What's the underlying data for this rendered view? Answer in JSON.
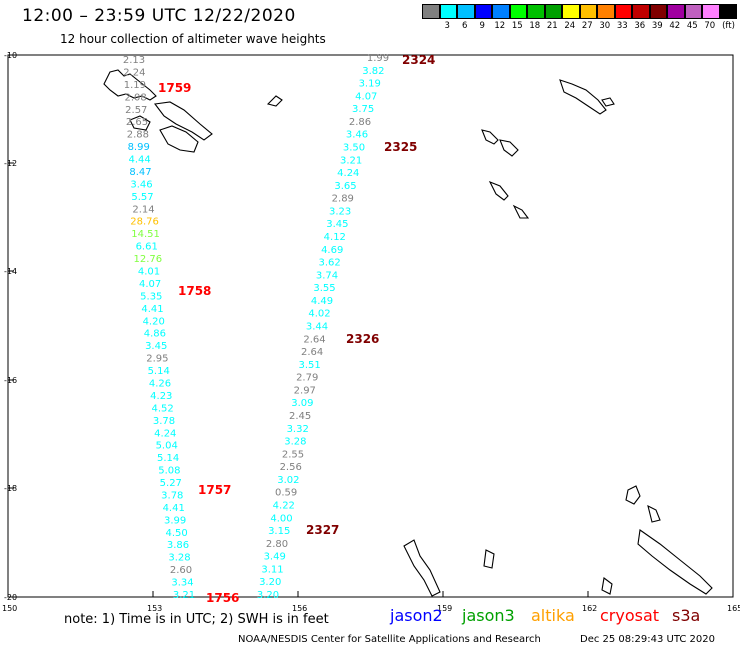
{
  "title": "12:00 – 23:59 UTC 12/22/2020",
  "subtitle": "12 hour collection of altimeter wave heights",
  "scale": {
    "unit": "(ft)",
    "colors": [
      "#808080",
      "#00ffff",
      "#00c0ff",
      "#0000ff",
      "#0080ff",
      "#00ff00",
      "#00c000",
      "#00a000",
      "#ffff00",
      "#ffc000",
      "#ff8000",
      "#ff0000",
      "#c00000",
      "#800000",
      "#a000a0",
      "#c060c0",
      "#ff80ff",
      "#000000"
    ],
    "labels": [
      "3",
      "6",
      "9",
      "12",
      "15",
      "18",
      "21",
      "24",
      "27",
      "30",
      "33",
      "36",
      "39",
      "42",
      "45",
      "70"
    ]
  },
  "axes": {
    "lat_labels": [
      "-10",
      "-12",
      "-14",
      "-16",
      "-18",
      "-20"
    ],
    "lon_labels": [
      "150",
      "153",
      "156",
      "159",
      "162",
      "165"
    ]
  },
  "tracks": [
    {
      "id": "1756",
      "time_label": "1759",
      "time_color": "#ff0000",
      "points": [
        {
          "v": "2.13",
          "c": "#808080"
        },
        {
          "v": "2.24",
          "c": "#808080"
        },
        {
          "v": "1.19",
          "c": "#808080"
        },
        {
          "v": "2.08",
          "c": "#808080"
        },
        {
          "v": "2.57",
          "c": "#808080"
        },
        {
          "v": "2.65",
          "c": "#808080"
        },
        {
          "v": "2.88",
          "c": "#808080"
        },
        {
          "v": "8.99",
          "c": "#00c0ff"
        },
        {
          "v": "4.44",
          "c": "#00ffff"
        },
        {
          "v": "8.47",
          "c": "#00c0ff"
        },
        {
          "v": "3.46",
          "c": "#00ffff"
        },
        {
          "v": "5.57",
          "c": "#00ffff"
        },
        {
          "v": "2.14",
          "c": "#808080"
        },
        {
          "v": "28.76",
          "c": "#ffc000"
        },
        {
          "v": "14.51",
          "c": "#80ff40"
        },
        {
          "v": "6.61",
          "c": "#00ffff"
        },
        {
          "v": "12.76",
          "c": "#80ff40"
        },
        {
          "v": "4.01",
          "c": "#00ffff"
        },
        {
          "v": "4.07",
          "c": "#00ffff"
        },
        {
          "v": "5.35",
          "c": "#00ffff"
        },
        {
          "v": "4.41",
          "c": "#00ffff"
        },
        {
          "v": "4.20",
          "c": "#00ffff"
        },
        {
          "v": "4.86",
          "c": "#00ffff"
        },
        {
          "v": "3.45",
          "c": "#00ffff"
        },
        {
          "v": "2.95",
          "c": "#808080"
        },
        {
          "v": "5.14",
          "c": "#00ffff"
        },
        {
          "v": "4.26",
          "c": "#00ffff"
        },
        {
          "v": "4.23",
          "c": "#00ffff"
        },
        {
          "v": "4.52",
          "c": "#00ffff"
        },
        {
          "v": "3.78",
          "c": "#00ffff"
        },
        {
          "v": "4.24",
          "c": "#00ffff"
        },
        {
          "v": "5.04",
          "c": "#00ffff"
        },
        {
          "v": "5.14",
          "c": "#00ffff"
        },
        {
          "v": "5.08",
          "c": "#00ffff"
        },
        {
          "v": "5.27",
          "c": "#00ffff"
        },
        {
          "v": "3.78",
          "c": "#00ffff"
        },
        {
          "v": "4.41",
          "c": "#00ffff"
        },
        {
          "v": "3.99",
          "c": "#00ffff"
        },
        {
          "v": "4.50",
          "c": "#00ffff"
        },
        {
          "v": "3.86",
          "c": "#00ffff"
        },
        {
          "v": "3.28",
          "c": "#00ffff"
        },
        {
          "v": "2.60",
          "c": "#808080"
        },
        {
          "v": "3.34",
          "c": "#00ffff"
        },
        {
          "v": "3.21",
          "c": "#00ffff"
        }
      ]
    },
    {
      "id": "2324",
      "time_label": "2324",
      "time_color": "#800000",
      "points": [
        {
          "v": "1.99",
          "c": "#808080"
        },
        {
          "v": "3.82",
          "c": "#00ffff"
        },
        {
          "v": "3.19",
          "c": "#00ffff"
        },
        {
          "v": "4.07",
          "c": "#00ffff"
        },
        {
          "v": "3.75",
          "c": "#00ffff"
        },
        {
          "v": "2.86",
          "c": "#808080"
        },
        {
          "v": "3.46",
          "c": "#00ffff"
        },
        {
          "v": "3.50",
          "c": "#00ffff"
        },
        {
          "v": "3.21",
          "c": "#00ffff"
        },
        {
          "v": "4.24",
          "c": "#00ffff"
        },
        {
          "v": "3.65",
          "c": "#00ffff"
        },
        {
          "v": "2.89",
          "c": "#808080"
        },
        {
          "v": "3.23",
          "c": "#00ffff"
        },
        {
          "v": "3.45",
          "c": "#00ffff"
        },
        {
          "v": "4.12",
          "c": "#00ffff"
        },
        {
          "v": "4.69",
          "c": "#00ffff"
        },
        {
          "v": "3.62",
          "c": "#00ffff"
        },
        {
          "v": "3.74",
          "c": "#00ffff"
        },
        {
          "v": "3.55",
          "c": "#00ffff"
        },
        {
          "v": "4.49",
          "c": "#00ffff"
        },
        {
          "v": "4.02",
          "c": "#00ffff"
        },
        {
          "v": "3.44",
          "c": "#00ffff"
        },
        {
          "v": "2.64",
          "c": "#808080"
        },
        {
          "v": "2.64",
          "c": "#808080"
        },
        {
          "v": "3.51",
          "c": "#00ffff"
        },
        {
          "v": "2.79",
          "c": "#808080"
        },
        {
          "v": "2.97",
          "c": "#808080"
        },
        {
          "v": "3.09",
          "c": "#00ffff"
        },
        {
          "v": "2.45",
          "c": "#808080"
        },
        {
          "v": "3.32",
          "c": "#00ffff"
        },
        {
          "v": "3.28",
          "c": "#00ffff"
        },
        {
          "v": "2.55",
          "c": "#808080"
        },
        {
          "v": "2.56",
          "c": "#808080"
        },
        {
          "v": "3.02",
          "c": "#00ffff"
        },
        {
          "v": "0.59",
          "c": "#808080"
        },
        {
          "v": "4.22",
          "c": "#00ffff"
        },
        {
          "v": "4.00",
          "c": "#00ffff"
        },
        {
          "v": "3.15",
          "c": "#00ffff"
        },
        {
          "v": "2.80",
          "c": "#808080"
        },
        {
          "v": "3.49",
          "c": "#00ffff"
        },
        {
          "v": "3.11",
          "c": "#00ffff"
        },
        {
          "v": "3.20",
          "c": "#00ffff"
        },
        {
          "v": "3.20",
          "c": "#00ffff"
        }
      ]
    }
  ],
  "time_labels": [
    {
      "text": "1759",
      "c": "#ff0000"
    },
    {
      "text": "1758",
      "c": "#ff0000"
    },
    {
      "text": "1757",
      "c": "#ff0000"
    },
    {
      "text": "1756",
      "c": "#ff0000"
    },
    {
      "text": "2324",
      "c": "#800000"
    },
    {
      "text": "2325",
      "c": "#800000"
    },
    {
      "text": "2326",
      "c": "#800000"
    },
    {
      "text": "2327",
      "c": "#800000"
    }
  ],
  "footer": {
    "note": "note:  1) Time is in UTC;  2) SWH is in feet",
    "credit": "NOAA/NESDIS Center for Satellite Applications and Research",
    "timestamp": "Dec 25 08:29:43 UTC 2020"
  },
  "satellites": [
    {
      "name": "jason2",
      "color": "#0000ff"
    },
    {
      "name": "jason3",
      "color": "#00a000"
    },
    {
      "name": "altika",
      "color": "#ffa000"
    },
    {
      "name": "cryosat",
      "color": "#ff0000"
    },
    {
      "name": "s3a",
      "color": "#800000"
    }
  ]
}
